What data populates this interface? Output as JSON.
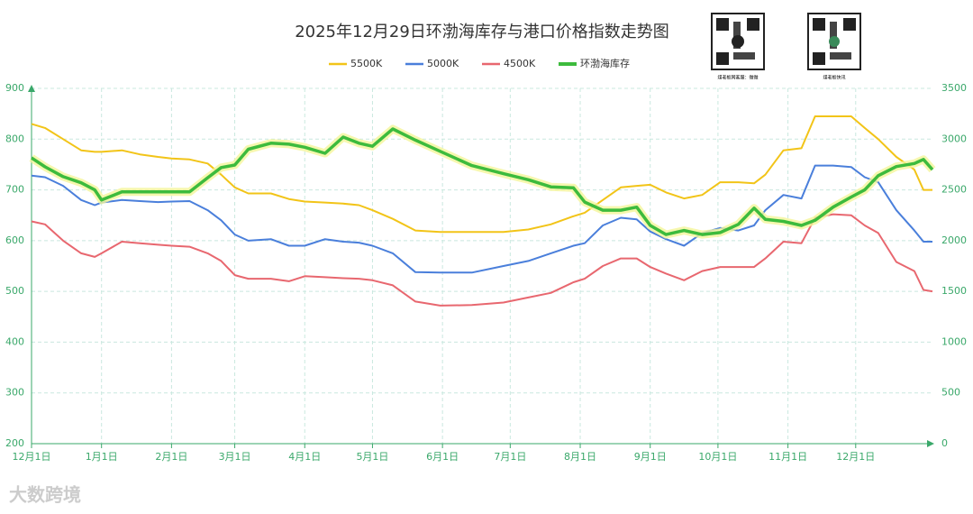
{
  "chart_data": {
    "type": "line",
    "title": "2025年12月29日环渤海库存与港口价格指数走势图",
    "x": [
      0,
      6,
      14,
      22,
      28,
      31,
      40,
      48,
      56,
      62,
      70,
      78,
      84,
      90,
      96,
      106,
      114,
      121,
      130,
      138,
      145,
      151,
      160,
      170,
      181,
      195,
      209,
      220,
      230,
      240,
      245,
      253,
      261,
      268,
      274,
      281,
      289,
      297,
      305,
      313,
      320,
      325,
      333,
      341,
      347,
      355,
      363,
      369,
      375,
      383,
      391,
      395,
      399
    ],
    "xlim": [
      0,
      399
    ],
    "xticks": [
      {
        "value": 0,
        "label": "12月1日"
      },
      {
        "value": 31,
        "label": "1月1日"
      },
      {
        "value": 62,
        "label": "2月1日"
      },
      {
        "value": 90,
        "label": "3月1日"
      },
      {
        "value": 121,
        "label": "4月1日"
      },
      {
        "value": 151,
        "label": "5月1日"
      },
      {
        "value": 182,
        "label": "6月1日"
      },
      {
        "value": 212,
        "label": "7月1日"
      },
      {
        "value": 243,
        "label": "8月1日"
      },
      {
        "value": 274,
        "label": "9月1日"
      },
      {
        "value": 304,
        "label": "10月1日"
      },
      {
        "value": 335,
        "label": "11月1日"
      },
      {
        "value": 365,
        "label": "12月1日"
      }
    ],
    "ylim": [
      200,
      900
    ],
    "yticks": [
      200,
      300,
      400,
      500,
      600,
      700,
      800,
      900
    ],
    "y2lim": [
      0,
      3500
    ],
    "y2ticks": [
      0,
      500,
      1000,
      1500,
      2000,
      2500,
      3000,
      3500
    ],
    "grid": true,
    "legend": "top",
    "series": [
      {
        "name": "5500K",
        "color": "#f2c418",
        "values": [
          830,
          822,
          800,
          778,
          775,
          775,
          778,
          770,
          765,
          762,
          760,
          752,
          730,
          705,
          693,
          693,
          682,
          677,
          675,
          673,
          670,
          660,
          643,
          620,
          617,
          617,
          617,
          622,
          632,
          648,
          655,
          680,
          705,
          708,
          710,
          695,
          683,
          690,
          715,
          715,
          713,
          730,
          778,
          782,
          845,
          845,
          845,
          822,
          800,
          765,
          740,
          700,
          700
        ]
      },
      {
        "name": "5000K",
        "color": "#4a7fdb",
        "values": [
          728,
          725,
          708,
          680,
          670,
          675,
          680,
          678,
          676,
          677,
          678,
          660,
          640,
          612,
          600,
          603,
          590,
          590,
          603,
          598,
          596,
          590,
          575,
          538,
          537,
          537,
          550,
          560,
          575,
          590,
          595,
          630,
          645,
          642,
          618,
          603,
          590,
          615,
          625,
          620,
          630,
          660,
          690,
          683,
          748,
          748,
          745,
          725,
          715,
          660,
          620,
          598,
          598
        ]
      },
      {
        "name": "4500K",
        "color": "#e8676f",
        "values": [
          638,
          632,
          600,
          575,
          568,
          575,
          598,
          595,
          592,
          590,
          588,
          575,
          560,
          532,
          525,
          525,
          520,
          530,
          528,
          526,
          525,
          522,
          512,
          480,
          472,
          473,
          478,
          488,
          497,
          518,
          525,
          550,
          565,
          565,
          548,
          535,
          522,
          540,
          548,
          548,
          548,
          565,
          598,
          595,
          645,
          652,
          650,
          630,
          615,
          558,
          540,
          503,
          500
        ]
      },
      {
        "name": "环渤海库存",
        "color": "#3dbb3d",
        "axis": "y2",
        "values": [
          2815,
          2727,
          2630,
          2570,
          2500,
          2400,
          2480,
          2480,
          2480,
          2480,
          2480,
          2620,
          2720,
          2745,
          2900,
          2960,
          2950,
          2920,
          2860,
          3020,
          2960,
          2930,
          3100,
          2990,
          2880,
          2740,
          2660,
          2600,
          2530,
          2520,
          2380,
          2300,
          2300,
          2330,
          2150,
          2060,
          2100,
          2060,
          2080,
          2160,
          2320,
          2210,
          2190,
          2150,
          2200,
          2330,
          2430,
          2500,
          2640,
          2730,
          2760,
          2800,
          2700
        ]
      }
    ]
  },
  "qr_captions": [
    "煤老板网客服：微微",
    "煤老板快讯"
  ],
  "watermark": "大数跨境"
}
